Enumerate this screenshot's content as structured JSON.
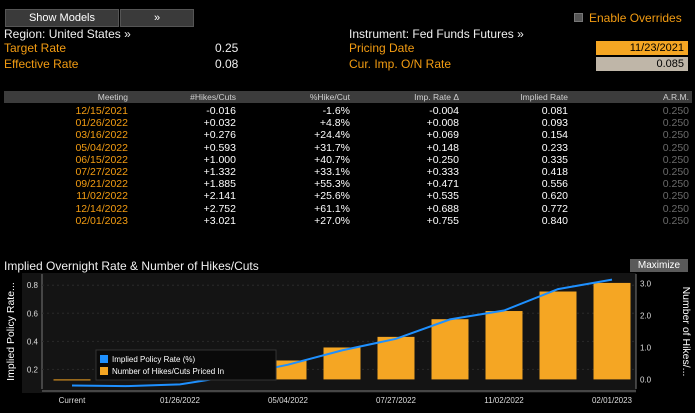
{
  "toolbar": {
    "show_models": "Show Models",
    "expand": "»",
    "enable_overrides": "Enable Overrides"
  },
  "info": {
    "region_label": "Region: United States »",
    "target_rate_label": "Target Rate",
    "target_rate_value": "0.25",
    "effective_rate_label": "Effective Rate",
    "effective_rate_value": "0.08",
    "instrument_label": "Instrument: Fed Funds Futures »",
    "pricing_date_label": "Pricing Date",
    "pricing_date_value": "11/23/2021",
    "cur_imp_label": "Cur. Imp. O/N Rate",
    "cur_imp_value": "0.085"
  },
  "table": {
    "headers": [
      "Meeting",
      "#Hikes/Cuts",
      "%Hike/Cut",
      "Imp. Rate Δ",
      "Implied Rate",
      "A.R.M."
    ],
    "rows": [
      [
        "12/15/2021",
        "-0.016",
        "-1.6%",
        "-0.004",
        "0.081",
        "0.250"
      ],
      [
        "01/26/2022",
        "+0.032",
        "+4.8%",
        "+0.008",
        "0.093",
        "0.250"
      ],
      [
        "03/16/2022",
        "+0.276",
        "+24.4%",
        "+0.069",
        "0.154",
        "0.250"
      ],
      [
        "05/04/2022",
        "+0.593",
        "+31.7%",
        "+0.148",
        "0.233",
        "0.250"
      ],
      [
        "06/15/2022",
        "+1.000",
        "+40.7%",
        "+0.250",
        "0.335",
        "0.250"
      ],
      [
        "07/27/2022",
        "+1.332",
        "+33.1%",
        "+0.333",
        "0.418",
        "0.250"
      ],
      [
        "09/21/2022",
        "+1.885",
        "+55.3%",
        "+0.471",
        "0.556",
        "0.250"
      ],
      [
        "11/02/2022",
        "+2.141",
        "+25.6%",
        "+0.535",
        "0.620",
        "0.250"
      ],
      [
        "12/14/2022",
        "+2.752",
        "+61.1%",
        "+0.688",
        "0.772",
        "0.250"
      ],
      [
        "02/01/2023",
        "+3.021",
        "+27.0%",
        "+0.755",
        "0.840",
        "0.250"
      ]
    ]
  },
  "chart_header": {
    "title": "Implied Overnight Rate & Number of Hikes/Cuts",
    "maximize": "Maximize"
  },
  "chart_data": {
    "type": "bar",
    "left_axis_label": "Implied Policy Rate...",
    "right_axis_label": "Number of Hikes/...",
    "left_ticks": [
      "0.2",
      "0.4",
      "0.6",
      "0.8"
    ],
    "right_ticks": [
      "0.0",
      "1.0",
      "2.0",
      "3.0"
    ],
    "x_tick_labels": [
      "Current",
      "01/26/2022",
      "05/04/2022",
      "07/27/2022",
      "11/02/2022",
      "02/01/2023"
    ],
    "categories": [
      "Current",
      "12/15/2021",
      "01/26/2022",
      "03/16/2022",
      "05/04/2022",
      "06/15/2022",
      "07/27/2022",
      "09/21/2022",
      "11/02/2022",
      "12/14/2022",
      "02/01/2023"
    ],
    "legend": {
      "rate": "Implied Policy Rate (%)",
      "hikes": "Number of Hikes/Cuts Priced In"
    },
    "implied_rate": [
      0.085,
      0.081,
      0.093,
      0.154,
      0.233,
      0.335,
      0.418,
      0.556,
      0.62,
      0.772,
      0.84
    ],
    "hikes": [
      0.0,
      -0.016,
      0.032,
      0.276,
      0.593,
      1.0,
      1.332,
      1.885,
      2.141,
      2.752,
      3.021
    ],
    "left_ylim": [
      0.06,
      0.88
    ],
    "right_ylim": [
      -0.3,
      3.3
    ],
    "colors": {
      "bars": "#f5a623",
      "line": "#1e90ff"
    }
  }
}
